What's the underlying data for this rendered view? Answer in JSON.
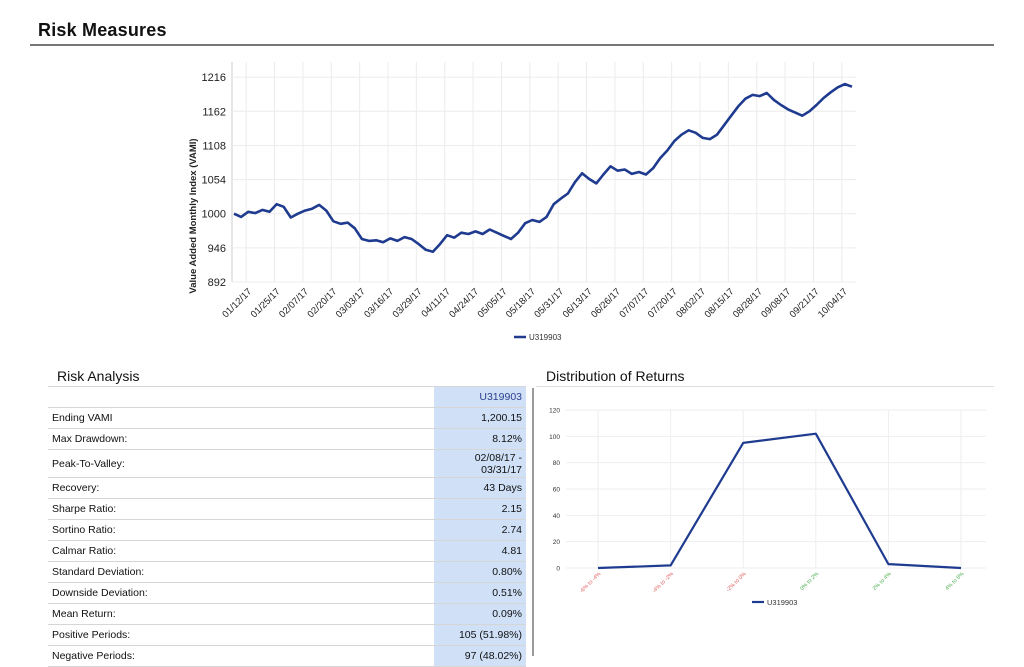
{
  "page": {
    "title": "Risk Measures"
  },
  "colors": {
    "series": "#1f3b8f",
    "highlight": "#cfe0f7",
    "negative_tick": "#e06060",
    "positive_tick": "#4caf50"
  },
  "sections": {
    "risk_analysis": "Risk Analysis",
    "distribution": "Distribution of Returns"
  },
  "risk_table": {
    "column_header": "U319903",
    "rows": [
      {
        "label": "Ending VAMI",
        "value": "1,200.15"
      },
      {
        "label": "Max Drawdown:",
        "value": "8.12%"
      },
      {
        "label": "Peak-To-Valley:",
        "value": "02/08/17 - 03/31/17"
      },
      {
        "label": "Recovery:",
        "value": "43 Days"
      },
      {
        "label": "Sharpe Ratio:",
        "value": "2.15"
      },
      {
        "label": "Sortino Ratio:",
        "value": "2.74"
      },
      {
        "label": "Calmar Ratio:",
        "value": "4.81"
      },
      {
        "label": "Standard Deviation:",
        "value": "0.80%"
      },
      {
        "label": "Downside Deviation:",
        "value": "0.51%"
      },
      {
        "label": "Mean Return:",
        "value": "0.09%"
      },
      {
        "label": "Positive Periods:",
        "value": "105 (51.98%)"
      },
      {
        "label": "Negative Periods:",
        "value": "97 (48.02%)"
      }
    ]
  },
  "chart_data": [
    {
      "type": "line",
      "ylabel": "Value Added Monthly Index (VAMI)",
      "y_ticks": [
        892,
        946,
        1000,
        1054,
        1108,
        1162,
        1216
      ],
      "ylim": [
        892,
        1240
      ],
      "x_tick_labels": [
        "01/12/17",
        "01/25/17",
        "02/07/17",
        "02/20/17",
        "03/03/17",
        "03/16/17",
        "03/29/17",
        "04/11/17",
        "04/24/17",
        "05/05/17",
        "05/18/17",
        "05/31/17",
        "06/13/17",
        "06/26/17",
        "07/07/17",
        "07/20/17",
        "08/02/17",
        "08/15/17",
        "08/28/17",
        "09/08/17",
        "09/21/17",
        "10/04/17"
      ],
      "grid": true,
      "legend": "bottom",
      "series": [
        {
          "name": "U319903",
          "values": [
            1000,
            995,
            1003,
            1001,
            1006,
            1003,
            1015,
            1011,
            994,
            1000,
            1005,
            1008,
            1014,
            1005,
            988,
            984,
            986,
            977,
            960,
            957,
            958,
            955,
            961,
            957,
            963,
            960,
            952,
            943,
            940,
            952,
            966,
            962,
            970,
            968,
            972,
            968,
            975,
            970,
            965,
            960,
            970,
            985,
            990,
            987,
            995,
            1015,
            1024,
            1032,
            1050,
            1064,
            1055,
            1048,
            1062,
            1075,
            1068,
            1070,
            1063,
            1066,
            1062,
            1072,
            1088,
            1100,
            1115,
            1125,
            1132,
            1128,
            1120,
            1118,
            1125,
            1140,
            1155,
            1170,
            1182,
            1188,
            1186,
            1191,
            1180,
            1172,
            1165,
            1160,
            1155,
            1162,
            1172,
            1183,
            1192,
            1200,
            1205,
            1201
          ]
        }
      ]
    },
    {
      "type": "line",
      "title": "Distribution of Returns",
      "categories": [
        "-6% to -4%",
        "-4% to -2%",
        "-2% to 0%",
        "0% to 2%",
        "2% to 4%",
        "4% to 6%"
      ],
      "y_ticks": [
        0,
        20,
        40,
        60,
        80,
        100,
        120
      ],
      "ylim": [
        0,
        120
      ],
      "grid": true,
      "legend": "bottom",
      "series": [
        {
          "name": "U319903",
          "values": [
            0,
            2,
            95,
            102,
            3,
            0
          ]
        }
      ]
    }
  ]
}
